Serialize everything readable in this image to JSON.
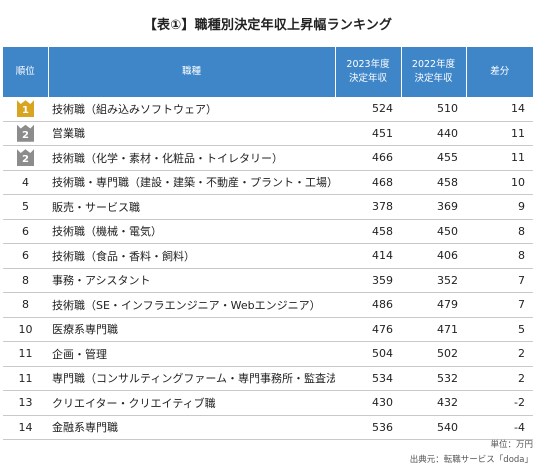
{
  "title": "【表①】職種別決定年収上昇幅ランキング",
  "headers": {
    "rank": "順位",
    "job": "職種",
    "y2023_line1": "2023年度",
    "y2023_line2": "決定年収",
    "y2022_line1": "2022年度",
    "y2022_line2": "決定年収",
    "diff": "差分"
  },
  "header_color": "#3f86c9",
  "badge_colors": {
    "gold": "#d9a520",
    "silver": "#8c8c8c"
  },
  "rows": [
    {
      "rank": "1",
      "badge": "gold",
      "job": "技術職（組み込みソフトウェア）",
      "y2023": "524",
      "y2022": "510",
      "diff": "14"
    },
    {
      "rank": "2",
      "badge": "silver",
      "job": "営業職",
      "y2023": "451",
      "y2022": "440",
      "diff": "11"
    },
    {
      "rank": "2",
      "badge": "silver",
      "job": "技術職（化学・素材・化粧品・トイレタリー）",
      "y2023": "466",
      "y2022": "455",
      "diff": "11"
    },
    {
      "rank": "4",
      "badge": "",
      "job": "技術職・専門職（建設・建築・不動産・プラント・工場）",
      "y2023": "468",
      "y2022": "458",
      "diff": "10"
    },
    {
      "rank": "5",
      "badge": "",
      "job": "販売・サービス職",
      "y2023": "378",
      "y2022": "369",
      "diff": "9"
    },
    {
      "rank": "6",
      "badge": "",
      "job": "技術職（機械・電気）",
      "y2023": "458",
      "y2022": "450",
      "diff": "8"
    },
    {
      "rank": "6",
      "badge": "",
      "job": "技術職（食品・香料・飼料）",
      "y2023": "414",
      "y2022": "406",
      "diff": "8"
    },
    {
      "rank": "8",
      "badge": "",
      "job": "事務・アシスタント",
      "y2023": "359",
      "y2022": "352",
      "diff": "7"
    },
    {
      "rank": "8",
      "badge": "",
      "job": "技術職（SE・インフラエンジニア・Webエンジニア）",
      "y2023": "486",
      "y2022": "479",
      "diff": "7"
    },
    {
      "rank": "10",
      "badge": "",
      "job": "医療系専門職",
      "y2023": "476",
      "y2022": "471",
      "diff": "5"
    },
    {
      "rank": "11",
      "badge": "",
      "job": "企画・管理",
      "y2023": "504",
      "y2022": "502",
      "diff": "2"
    },
    {
      "rank": "11",
      "badge": "",
      "job": "専門職（コンサルティングファーム・専門事務所・監査法人）",
      "y2023": "534",
      "y2022": "532",
      "diff": "2"
    },
    {
      "rank": "13",
      "badge": "",
      "job": "クリエイター・クリエイティブ職",
      "y2023": "430",
      "y2022": "432",
      "diff": "-2"
    },
    {
      "rank": "14",
      "badge": "",
      "job": "金融系専門職",
      "y2023": "536",
      "y2022": "540",
      "diff": "-4"
    }
  ],
  "footnote_unit": "単位：万円",
  "footnote_source": "出典元：転職サービス「doda」"
}
